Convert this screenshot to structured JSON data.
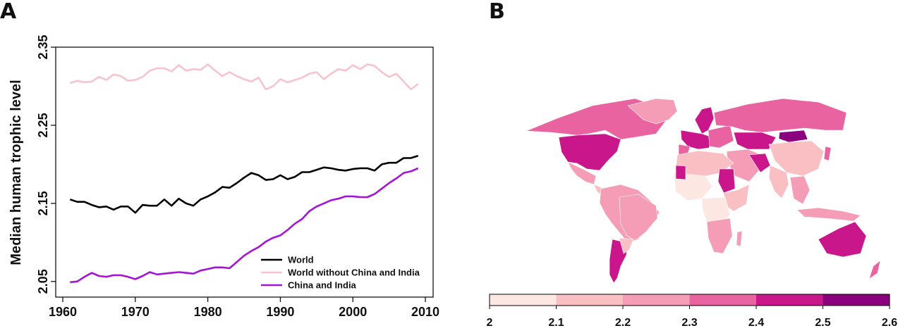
{
  "panels": {
    "a_label": "A",
    "b_label": "B"
  },
  "chart_data": [
    {
      "type": "line",
      "title": "",
      "xlabel": "",
      "ylabel": "Median human trophic level",
      "xlim": [
        1960,
        2010
      ],
      "ylim": [
        2.03,
        2.35
      ],
      "xticks": [
        "1960",
        "1970",
        "1980",
        "1990",
        "2000",
        "2010"
      ],
      "yticks": [
        "2.05",
        "2.15",
        "2.25",
        "2.35"
      ],
      "legend_position": "bottom-right",
      "x": [
        1961,
        1962,
        1963,
        1964,
        1965,
        1966,
        1967,
        1968,
        1969,
        1970,
        1971,
        1972,
        1973,
        1974,
        1975,
        1976,
        1977,
        1978,
        1979,
        1980,
        1981,
        1982,
        1983,
        1984,
        1985,
        1986,
        1987,
        1988,
        1989,
        1990,
        1991,
        1992,
        1993,
        1994,
        1995,
        1996,
        1997,
        1998,
        1999,
        2000,
        2001,
        2002,
        2003,
        2004,
        2005,
        2006,
        2007,
        2008,
        2009
      ],
      "series": [
        {
          "name": "World",
          "color": "#000000",
          "values": [
            2.155,
            2.152,
            2.152,
            2.148,
            2.145,
            2.146,
            2.142,
            2.146,
            2.146,
            2.138,
            2.148,
            2.147,
            2.147,
            2.155,
            2.147,
            2.156,
            2.15,
            2.147,
            2.155,
            2.159,
            2.164,
            2.171,
            2.17,
            2.176,
            2.183,
            2.189,
            2.186,
            2.18,
            2.181,
            2.186,
            2.181,
            2.184,
            2.19,
            2.19,
            2.193,
            2.196,
            2.195,
            2.193,
            2.192,
            2.194,
            2.195,
            2.195,
            2.192,
            2.2,
            2.202,
            2.202,
            2.208,
            2.208,
            2.211
          ]
        },
        {
          "name": "World without China and India",
          "color": "#f7c3cf",
          "values": [
            2.304,
            2.307,
            2.305,
            2.306,
            2.312,
            2.308,
            2.315,
            2.313,
            2.307,
            2.308,
            2.312,
            2.32,
            2.323,
            2.323,
            2.319,
            2.327,
            2.32,
            2.322,
            2.321,
            2.328,
            2.32,
            2.313,
            2.318,
            2.313,
            2.309,
            2.306,
            2.311,
            2.296,
            2.3,
            2.309,
            2.305,
            2.308,
            2.311,
            2.316,
            2.318,
            2.309,
            2.316,
            2.322,
            2.32,
            2.327,
            2.322,
            2.328,
            2.326,
            2.318,
            2.312,
            2.316,
            2.306,
            2.296,
            2.303
          ]
        },
        {
          "name": "China and India",
          "color": "#a513d6",
          "values": [
            2.049,
            2.05,
            2.056,
            2.061,
            2.057,
            2.056,
            2.058,
            2.058,
            2.056,
            2.053,
            2.057,
            2.062,
            2.059,
            2.06,
            2.061,
            2.062,
            2.061,
            2.06,
            2.064,
            2.066,
            2.068,
            2.068,
            2.067,
            2.075,
            2.083,
            2.089,
            2.094,
            2.101,
            2.106,
            2.109,
            2.116,
            2.124,
            2.13,
            2.14,
            2.146,
            2.15,
            2.154,
            2.156,
            2.159,
            2.159,
            2.158,
            2.158,
            2.162,
            2.169,
            2.176,
            2.182,
            2.189,
            2.191,
            2.195
          ]
        }
      ]
    },
    {
      "type": "heatmap",
      "title": "",
      "colorbar": {
        "ticks": [
          "2",
          "2.1",
          "2.2",
          "2.3",
          "2.4",
          "2.5",
          "2.6"
        ],
        "colors": [
          "#fde7e3",
          "#f9bfc2",
          "#f59db7",
          "#e8639f",
          "#c9178b",
          "#8a007e"
        ]
      }
    }
  ]
}
